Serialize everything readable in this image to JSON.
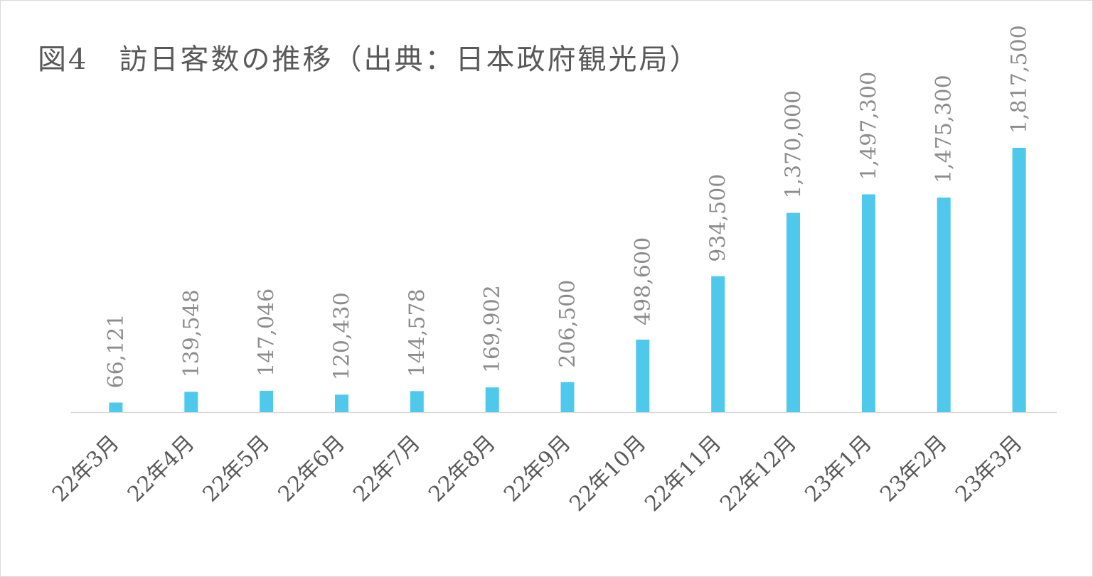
{
  "chart_data": {
    "type": "bar",
    "title": "図4　訪日客数の推移（出典：日本政府観光局）",
    "xlabel": "",
    "ylabel": "",
    "categories": [
      "22年3月",
      "22年4月",
      "22年5月",
      "22年6月",
      "22年7月",
      "22年8月",
      "22年9月",
      "22年10月",
      "22年11月",
      "22年12月",
      "23年1月",
      "23年2月",
      "23年3月"
    ],
    "values": [
      66121,
      139548,
      147046,
      120430,
      144578,
      169902,
      206500,
      498600,
      934500,
      1370000,
      1497300,
      1475300,
      1817500
    ],
    "value_labels": [
      "66,121",
      "139,548",
      "147,046",
      "120,430",
      "144,578",
      "169,902",
      "206,500",
      "498,600",
      "934,500",
      "1,370,000",
      "1,497,300",
      "1,475,300",
      "1,817,500"
    ],
    "ylim": [
      0,
      1817500
    ],
    "grid": false,
    "legend": "none",
    "colors": {
      "bar": "#4ec9ec",
      "axis": "#d9d9d9",
      "title": "#595959",
      "data_label": "#8c8c8c",
      "tick_label": "#595959"
    }
  }
}
